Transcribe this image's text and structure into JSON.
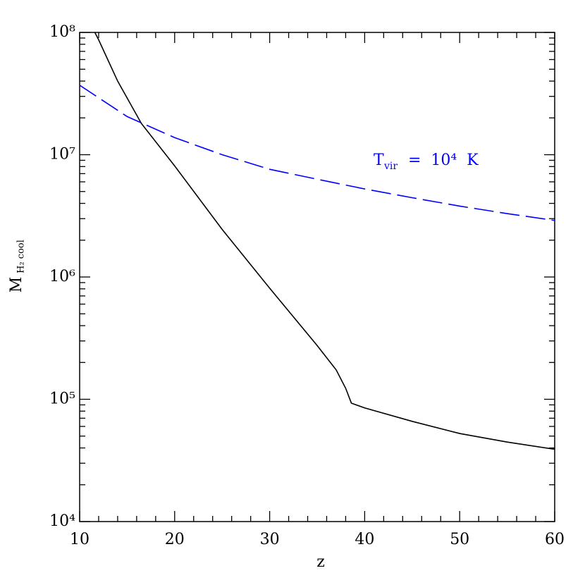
{
  "chart_data": {
    "type": "line",
    "xlabel": "z",
    "ylabel": "M",
    "ylabel_sub": "H₂ cool",
    "annotation": {
      "main": "T",
      "sub": "vir",
      "rest": " =  10⁴  K"
    },
    "log_y": true,
    "xlim": [
      10,
      60
    ],
    "ylim": [
      10000,
      100000000
    ],
    "xticks": [
      10,
      20,
      30,
      40,
      50,
      60
    ],
    "xticks_minor": [
      12,
      14,
      16,
      18,
      22,
      24,
      26,
      28,
      32,
      34,
      36,
      38,
      42,
      44,
      46,
      48,
      52,
      54,
      56,
      58
    ],
    "yticks": [
      {
        "value": 10000,
        "label": "10⁴"
      },
      {
        "value": 100000,
        "label": "10⁵"
      },
      {
        "value": 1000000,
        "label": "10⁶"
      },
      {
        "value": 10000000,
        "label": "10⁷"
      },
      {
        "value": 100000000,
        "label": "10⁸"
      }
    ],
    "yticks_minor": [
      20000,
      30000,
      40000,
      50000,
      60000,
      70000,
      80000,
      90000,
      200000,
      300000,
      400000,
      500000,
      600000,
      700000,
      800000,
      900000,
      2000000,
      3000000,
      4000000,
      5000000,
      6000000,
      7000000,
      8000000,
      9000000,
      20000000,
      30000000,
      40000000,
      50000000,
      60000000,
      70000000,
      80000000,
      90000000
    ],
    "series": [
      {
        "color": "#000000",
        "dash": false,
        "x": [
          11.6,
          12,
          14,
          16.5,
          20,
          25,
          30,
          35,
          37,
          38,
          38.6,
          40,
          45,
          50,
          55,
          60
        ],
        "values": [
          100000000,
          87000000,
          40000000,
          18000000,
          8100000,
          2450000,
          810000,
          275000,
          174000,
          123000,
          93000,
          85000,
          66000,
          52500,
          44700,
          39000
        ]
      },
      {
        "color": "#0000ff",
        "dash": true,
        "x": [
          10,
          15,
          20,
          25,
          30,
          35,
          40,
          45,
          50,
          55,
          60
        ],
        "values": [
          37000000,
          20500000,
          13800000,
          10000000,
          7600000,
          6300000,
          5250000,
          4450000,
          3800000,
          3300000,
          2900000
        ]
      }
    ]
  }
}
